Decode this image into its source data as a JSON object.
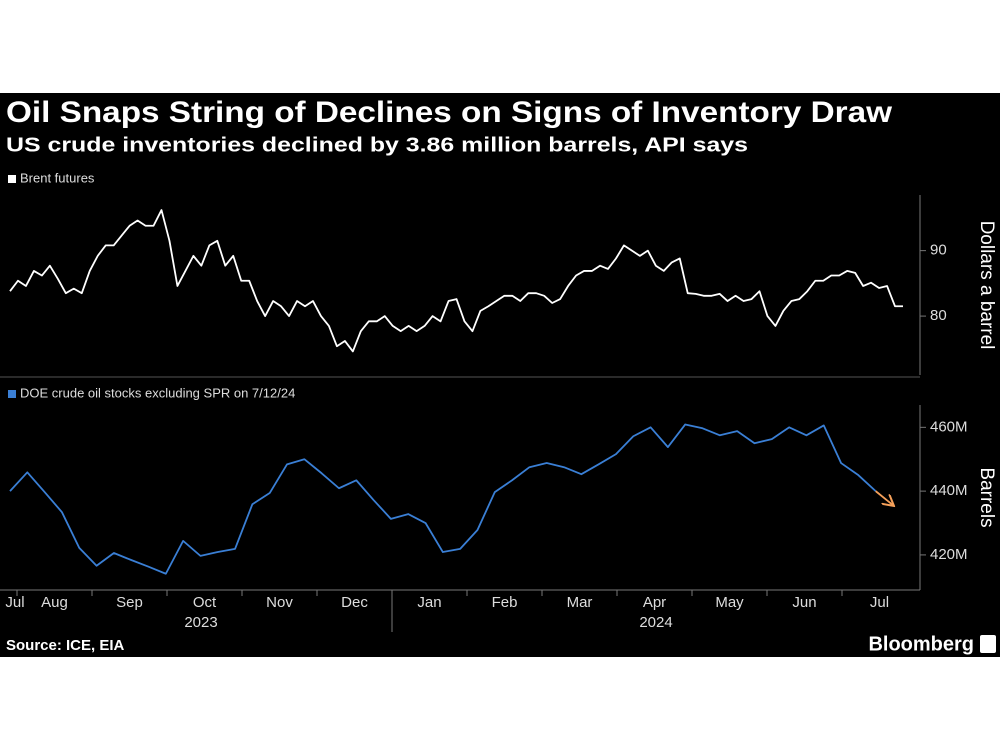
{
  "title": "Oil Snaps String of Declines on Signs of Inventory Draw",
  "subtitle": "US crude inventories declined by 3.86 million barrels, API says",
  "source": "Source: ICE, EIA",
  "brand": "Bloomberg",
  "x_axis": {
    "months": [
      "Jul",
      "Aug",
      "Sep",
      "Oct",
      "Nov",
      "Dec",
      "Jan",
      "Feb",
      "Mar",
      "Apr",
      "May",
      "Jun",
      "Jul"
    ],
    "years": [
      "2023",
      "2024"
    ]
  },
  "chart_data": [
    {
      "type": "line",
      "axis_label": "Dollars a barrel",
      "series": [
        {
          "name": "Brent futures",
          "color": "#ffffff",
          "values": [
            83.8,
            85.4,
            84.6,
            86.9,
            86.2,
            87.7,
            85.7,
            83.5,
            84.2,
            83.5,
            86.9,
            89.2,
            90.8,
            90.8,
            92.3,
            93.8,
            94.6,
            93.8,
            93.8,
            96.2,
            91.5,
            84.6,
            86.9,
            89.2,
            87.7,
            90.8,
            91.5,
            87.7,
            89.2,
            85.4,
            85.4,
            82.3,
            80.0,
            82.3,
            81.5,
            80.0,
            82.3,
            81.5,
            82.3,
            80.0,
            78.5,
            75.4,
            76.2,
            74.6,
            77.7,
            79.2,
            79.2,
            80.0,
            78.5,
            77.7,
            78.5,
            77.7,
            78.5,
            80.0,
            79.2,
            82.3,
            82.6,
            79.2,
            77.7,
            80.8,
            81.5,
            82.3,
            83.1,
            83.1,
            82.3,
            83.5,
            83.5,
            83.1,
            82.0,
            82.6,
            84.6,
            86.2,
            86.9,
            86.9,
            87.7,
            87.2,
            88.8,
            90.8,
            90.0,
            89.2,
            90.0,
            87.7,
            86.9,
            88.2,
            88.8,
            83.5,
            83.4,
            83.1,
            83.1,
            83.4,
            82.3,
            83.1,
            82.3,
            82.6,
            83.8,
            80.0,
            78.5,
            80.8,
            82.3,
            82.6,
            83.8,
            85.4,
            85.4,
            86.2,
            86.2,
            86.9,
            86.6,
            84.6,
            85.1,
            84.3,
            84.6,
            81.5,
            81.5
          ]
        }
      ],
      "ylim": [
        71,
        98.5
      ],
      "yticks": [
        80,
        90
      ]
    },
    {
      "type": "line",
      "axis_label": "Barrels",
      "last_segment_color": "#f5a05a",
      "series": [
        {
          "name": "DOE crude oil stocks excluding SPR on 7/12/24",
          "color": "#3a7fd5",
          "values": [
            440,
            445.9,
            439.7,
            433.4,
            422.2,
            416.6,
            420.6,
            418.4,
            416.3,
            414.1,
            424.4,
            419.7,
            420.9,
            421.9,
            435.9,
            439.4,
            448.4,
            450,
            445.6,
            440.9,
            443.4,
            437.2,
            431.3,
            432.8,
            430,
            420.9,
            421.9,
            427.8,
            439.7,
            443.4,
            447.5,
            448.8,
            447.5,
            445.3,
            448.4,
            451.6,
            457.2,
            460,
            453.8,
            460.9,
            459.7,
            457.5,
            458.8,
            455,
            456.3,
            460,
            457.5,
            460.6,
            448.8,
            445,
            440,
            435.6
          ]
        }
      ],
      "ylim": [
        409,
        467
      ],
      "yticks": [
        {
          "value": 420,
          "label": "420M"
        },
        {
          "value": 440,
          "label": "440M"
        },
        {
          "value": 460,
          "label": "460M"
        }
      ]
    }
  ]
}
